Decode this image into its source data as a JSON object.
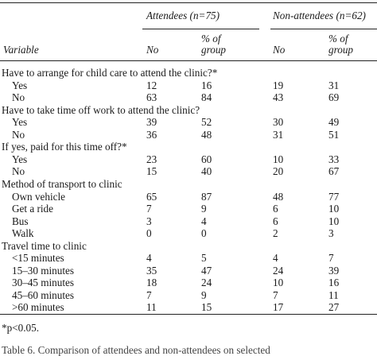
{
  "header": {
    "group1": "Attendees (n=75)",
    "group2": "Non-attendees (n=62)",
    "variable": "Variable",
    "no": "No",
    "pct_line1": "% of",
    "pct_line2": "group"
  },
  "sections": [
    {
      "title": "Have to arrange for child care to attend the clinic?*",
      "rows": [
        {
          "label": "Yes",
          "a_no": "12",
          "a_pct": "16",
          "n_no": "19",
          "n_pct": "31"
        },
        {
          "label": "No",
          "a_no": "63",
          "a_pct": "84",
          "n_no": "43",
          "n_pct": "69"
        }
      ]
    },
    {
      "title": "Have to take time off work to attend the clinic?",
      "rows": [
        {
          "label": "Yes",
          "a_no": "39",
          "a_pct": "52",
          "n_no": "30",
          "n_pct": "49"
        },
        {
          "label": "No",
          "a_no": "36",
          "a_pct": "48",
          "n_no": "31",
          "n_pct": "51"
        }
      ]
    },
    {
      "title": "If yes, paid for this time off?*",
      "rows": [
        {
          "label": "Yes",
          "a_no": "23",
          "a_pct": "60",
          "n_no": "10",
          "n_pct": "33"
        },
        {
          "label": "No",
          "a_no": "15",
          "a_pct": "40",
          "n_no": "20",
          "n_pct": "67"
        }
      ]
    },
    {
      "title": "Method of transport to clinic",
      "rows": [
        {
          "label": "Own vehicle",
          "a_no": "65",
          "a_pct": "87",
          "n_no": "48",
          "n_pct": "77"
        },
        {
          "label": "Get a ride",
          "a_no": "7",
          "a_pct": "9",
          "n_no": "6",
          "n_pct": "10"
        },
        {
          "label": "Bus",
          "a_no": "3",
          "a_pct": "4",
          "n_no": "6",
          "n_pct": "10"
        },
        {
          "label": "Walk",
          "a_no": "0",
          "a_pct": "0",
          "n_no": "2",
          "n_pct": "3"
        }
      ]
    },
    {
      "title": "Travel time to clinic",
      "rows": [
        {
          "label": "<15 minutes",
          "a_no": "4",
          "a_pct": "5",
          "n_no": "4",
          "n_pct": "7"
        },
        {
          "label": "15–30 minutes",
          "a_no": "35",
          "a_pct": "47",
          "n_no": "24",
          "n_pct": "39"
        },
        {
          "label": "30–45 minutes",
          "a_no": "18",
          "a_pct": "24",
          "n_no": "10",
          "n_pct": "16"
        },
        {
          "label": "45–60 minutes",
          "a_no": "7",
          "a_pct": "9",
          "n_no": "7",
          "n_pct": "11"
        },
        {
          "label": ">60 minutes",
          "a_no": "11",
          "a_pct": "15",
          "n_no": "17",
          "n_pct": "27"
        }
      ]
    }
  ],
  "footnote": "*p<0.05.",
  "caption": "Table 6.   Comparison of attendees and non-attendees on selected"
}
